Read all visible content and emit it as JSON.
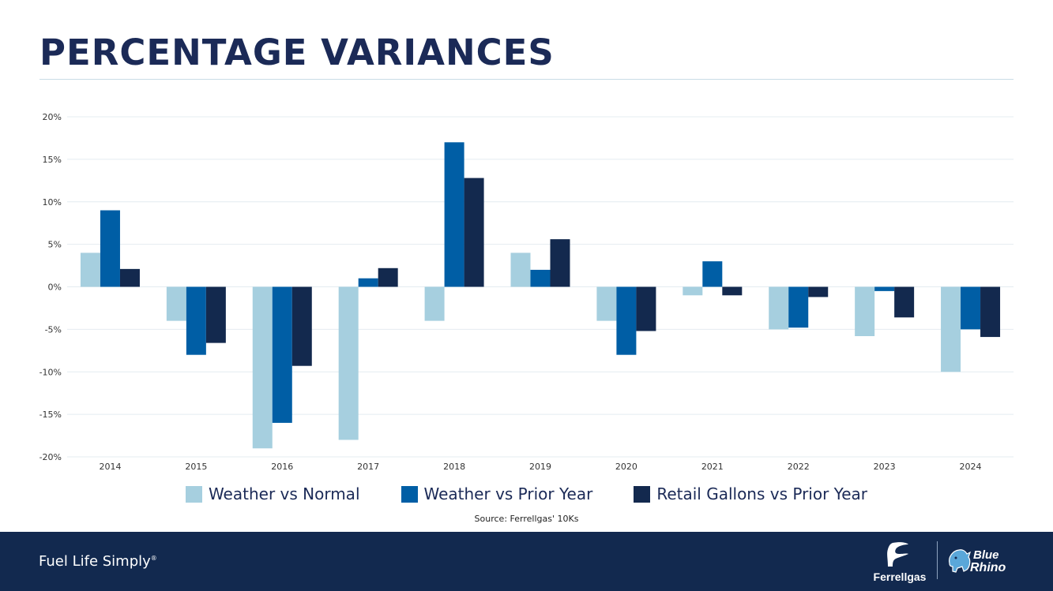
{
  "header": {
    "title": "PERCENTAGE VARIANCES"
  },
  "chart_data": {
    "type": "bar",
    "title": "",
    "xlabel": "",
    "ylabel": "",
    "categories": [
      "2014",
      "2015",
      "2016",
      "2017",
      "2018",
      "2019",
      "2020",
      "2021",
      "2022",
      "2023",
      "2024"
    ],
    "series": [
      {
        "name": "Weather vs Normal",
        "color": "#a6cfdf",
        "values": [
          4,
          -4,
          -19,
          -18,
          -4,
          4,
          -4,
          -1,
          -5,
          -5.8,
          -10
        ]
      },
      {
        "name": "Weather vs Prior Year",
        "color": "#005ea5",
        "values": [
          9,
          -8,
          -16,
          1,
          17,
          2,
          -8,
          3,
          -4.8,
          -0.5,
          -5
        ]
      },
      {
        "name": "Retail Gallons vs Prior Year",
        "color": "#13294e",
        "values": [
          2.1,
          -6.6,
          -9.3,
          2.2,
          12.8,
          5.6,
          -5.2,
          -1,
          -1.2,
          -3.6,
          -5.9
        ]
      }
    ],
    "ylim": [
      -20,
      20
    ],
    "yticks": [
      20,
      15,
      10,
      5,
      0,
      -5,
      -10,
      -15,
      -20
    ],
    "ytick_labels": [
      "20%",
      "15%",
      "10%",
      "5%",
      "0%",
      "-5%",
      "-10%",
      "-15%",
      "-20%"
    ],
    "grid": true,
    "legend": "bottom"
  },
  "source": "Source: Ferrellgas' 10Ks",
  "footer": {
    "tagline": "Fuel Life Simply",
    "tagline_mark": "®",
    "brand_ferrellgas": "Ferrellgas",
    "brand_bluerhino_1": "Blue",
    "brand_bluerhino_2": "Rhino",
    "ferrellgas_icon": "ferrellgas-flame-icon",
    "bluerhino_icon": "rhino-icon"
  }
}
